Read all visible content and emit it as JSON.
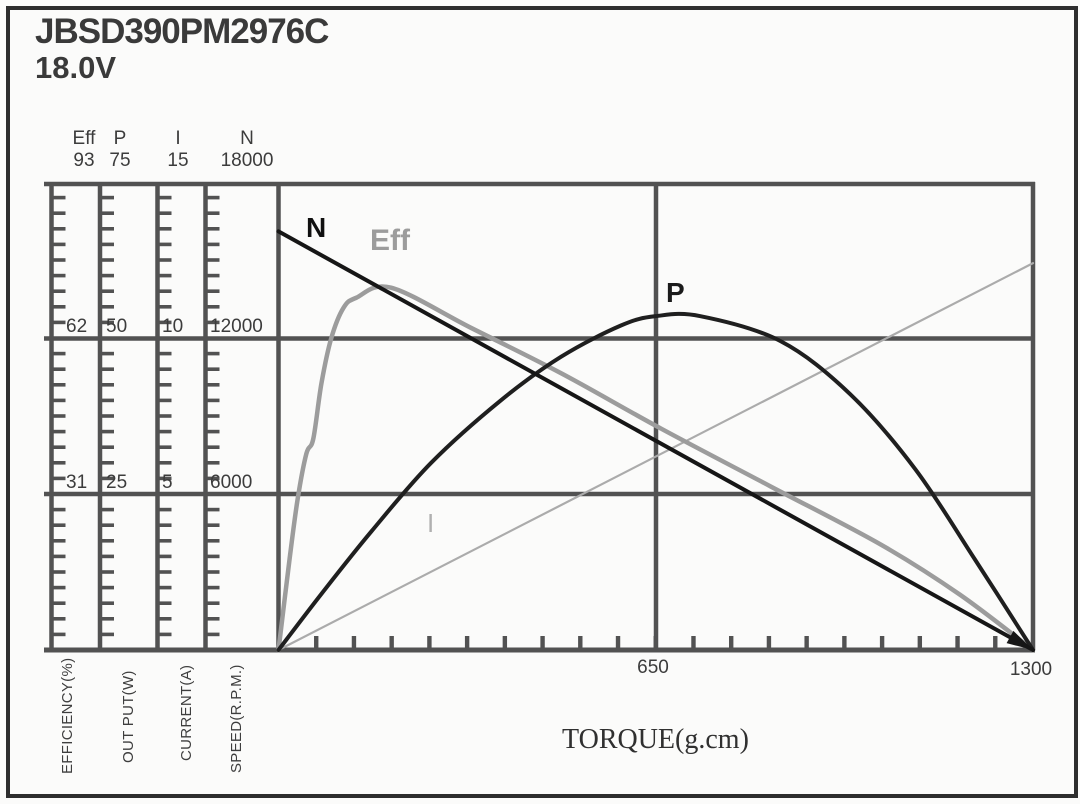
{
  "header": {
    "model": "JBSD390PM2976C",
    "voltage": "18.0V"
  },
  "chart_data": {
    "type": "line",
    "title": "JBSD390PM2976C",
    "subtitle": "18.0V",
    "xlabel": "TORQUE(g.cm)",
    "x_min": 0,
    "x_max": 1300,
    "x_tick_labels": [
      "650",
      "1300"
    ],
    "x_tick_count": 20,
    "grid": true,
    "legend_position": "inline-labels",
    "axes": [
      {
        "id": "eff",
        "name": "Eff",
        "label": "EFFICIENCY(%)",
        "max": 93,
        "ticks": [
          "31",
          "62",
          "93"
        ]
      },
      {
        "id": "p",
        "name": "P",
        "label": "OUT PUT(W)",
        "max": 75,
        "ticks": [
          "25",
          "50",
          "75"
        ]
      },
      {
        "id": "i",
        "name": "I",
        "label": "CURRENT(A)",
        "max": 15,
        "ticks": [
          "5",
          "10",
          "15"
        ]
      },
      {
        "id": "n",
        "name": "N",
        "label": "SPEED(R.P.M.)",
        "max": 18000,
        "ticks": [
          "6000",
          "12000",
          "18000"
        ]
      }
    ],
    "series": [
      {
        "name": "N",
        "axis": "n",
        "color": "#161616",
        "width": 4,
        "arrow_end": true,
        "points": [
          [
            0,
            16100
          ],
          [
            1300,
            0
          ]
        ]
      },
      {
        "name": "Eff",
        "axis": "eff",
        "color": "#9c9c9c",
        "width": 4.5,
        "points": [
          [
            0,
            0
          ],
          [
            19,
            18
          ],
          [
            33,
            30
          ],
          [
            48,
            39
          ],
          [
            60,
            42
          ],
          [
            74,
            53
          ],
          [
            91,
            62
          ],
          [
            112,
            68
          ],
          [
            134,
            70
          ],
          [
            194,
            72
          ],
          [
            332,
            64
          ],
          [
            487,
            55
          ],
          [
            659,
            44
          ],
          [
            848,
            32.5
          ],
          [
            1037,
            21
          ],
          [
            1174,
            11
          ],
          [
            1300,
            0
          ]
        ]
      },
      {
        "name": "P",
        "axis": "p",
        "color": "#1f1f1f",
        "width": 4,
        "points": [
          [
            0,
            0
          ],
          [
            74,
            9
          ],
          [
            160,
            19
          ],
          [
            263,
            30
          ],
          [
            383,
            40
          ],
          [
            487,
            47
          ],
          [
            590,
            52
          ],
          [
            650,
            53.5
          ],
          [
            727,
            53.5
          ],
          [
            865,
            49.5
          ],
          [
            985,
            41
          ],
          [
            1097,
            29
          ],
          [
            1200,
            14.5
          ],
          [
            1300,
            0
          ]
        ]
      },
      {
        "name": "I",
        "axis": "i",
        "color": "#ababab",
        "width": 2.2,
        "points": [
          [
            0,
            0
          ],
          [
            1300,
            12.4
          ]
        ]
      }
    ]
  }
}
